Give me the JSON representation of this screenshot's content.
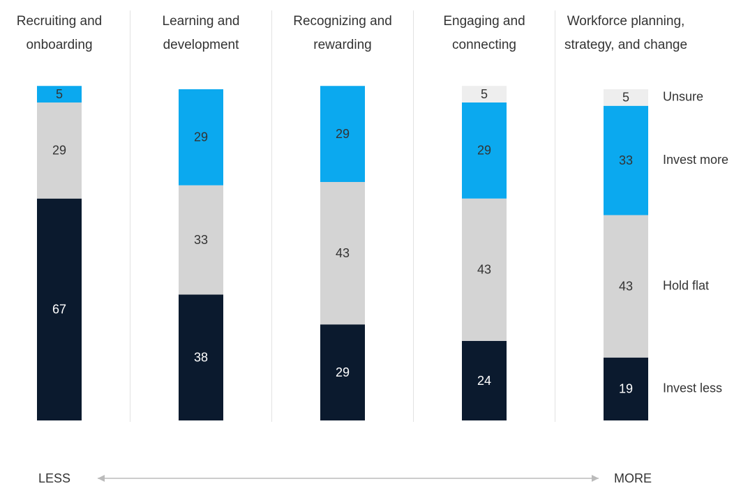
{
  "chart_data": {
    "type": "bar",
    "stacked": true,
    "categories": [
      "Recruiting and onboarding",
      "Learning and development",
      "Recognizing and rewarding",
      "Engaging and connecting",
      "Workforce planning, strategy, and change"
    ],
    "series": [
      {
        "name": "Invest less",
        "color": "#0b1a2e",
        "values": [
          67,
          38,
          29,
          24,
          19
        ]
      },
      {
        "name": "Hold flat",
        "color": "#d4d4d4",
        "values": [
          29,
          33,
          43,
          43,
          43
        ]
      },
      {
        "name": "Invest more",
        "color": "#0ba9ef",
        "values": [
          5,
          29,
          29,
          29,
          33
        ]
      },
      {
        "name": "Unsure",
        "color": "#eeeeee",
        "values": [
          null,
          null,
          null,
          5,
          5
        ]
      }
    ],
    "annotations": {
      "left": "LESS",
      "right": "MORE"
    }
  }
}
